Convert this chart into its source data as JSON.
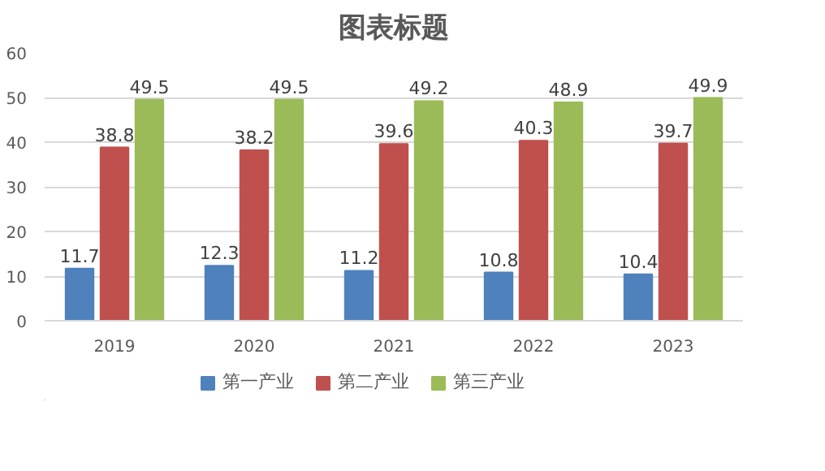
{
  "chart_data": {
    "type": "bar",
    "title": "图表标题",
    "categories": [
      "2019",
      "2020",
      "2021",
      "2022",
      "2023"
    ],
    "series": [
      {
        "name": "第一产业",
        "color": "#4f81bd",
        "values": [
          11.7,
          12.3,
          11.2,
          10.8,
          10.4
        ]
      },
      {
        "name": "第二产业",
        "color": "#c0504d",
        "values": [
          38.8,
          38.2,
          39.6,
          40.3,
          39.7
        ]
      },
      {
        "name": "第三产业",
        "color": "#9bbb59",
        "values": [
          49.5,
          49.5,
          49.2,
          48.9,
          49.9
        ]
      }
    ],
    "ylim": [
      0,
      60
    ],
    "yticks": [
      0,
      10,
      20,
      30,
      40,
      50,
      60
    ],
    "grid": "y",
    "legend": "bottom",
    "data_labels": true
  }
}
